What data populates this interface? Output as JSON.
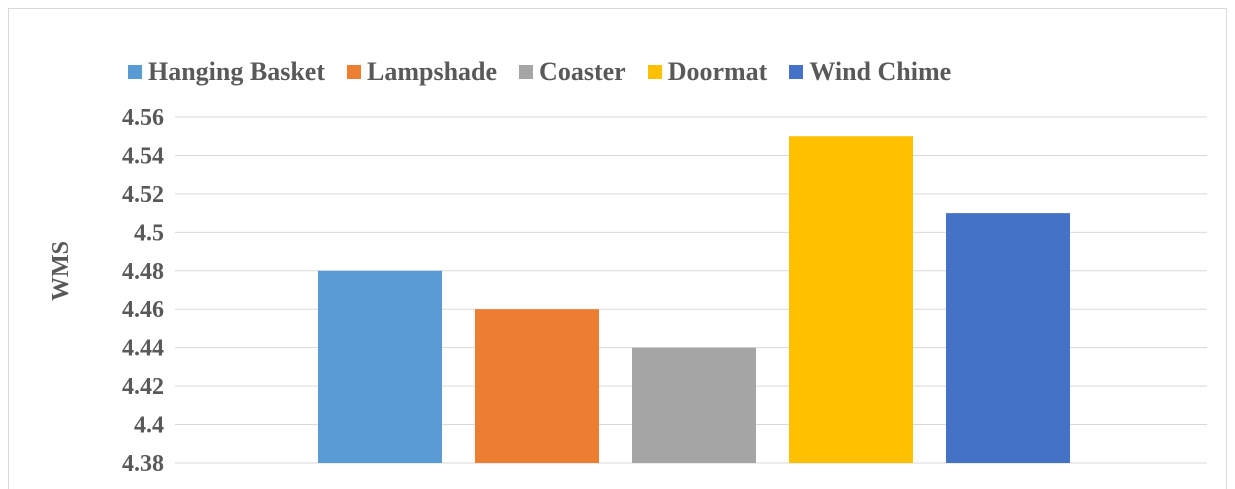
{
  "chart_data": {
    "type": "bar",
    "categories": [
      "Hanging Basket",
      "Lampshade",
      "Coaster",
      "Doormat",
      "Wind Chime"
    ],
    "values": [
      4.48,
      4.46,
      4.44,
      4.55,
      4.51
    ],
    "colors": [
      "#5b9bd5",
      "#ed7d31",
      "#a5a5a5",
      "#ffc000",
      "#4472c4"
    ],
    "legend": [
      {
        "label": "Hanging Basket",
        "color": "#5b9bd5"
      },
      {
        "label": "Lampshade",
        "color": "#ed7d31"
      },
      {
        "label": "Coaster",
        "color": "#a5a5a5"
      },
      {
        "label": "Doormat",
        "color": "#ffc000"
      },
      {
        "label": "Wind Chime",
        "color": "#4472c4"
      }
    ],
    "yticks": [
      "4.38",
      "4.4",
      "4.42",
      "4.44",
      "4.46",
      "4.48",
      "4.5",
      "4.52",
      "4.54",
      "4.56"
    ],
    "ylim": [
      4.38,
      4.56
    ],
    "ylabel": "WMS",
    "xlabel": "",
    "grid": true,
    "legend_position": "top"
  }
}
